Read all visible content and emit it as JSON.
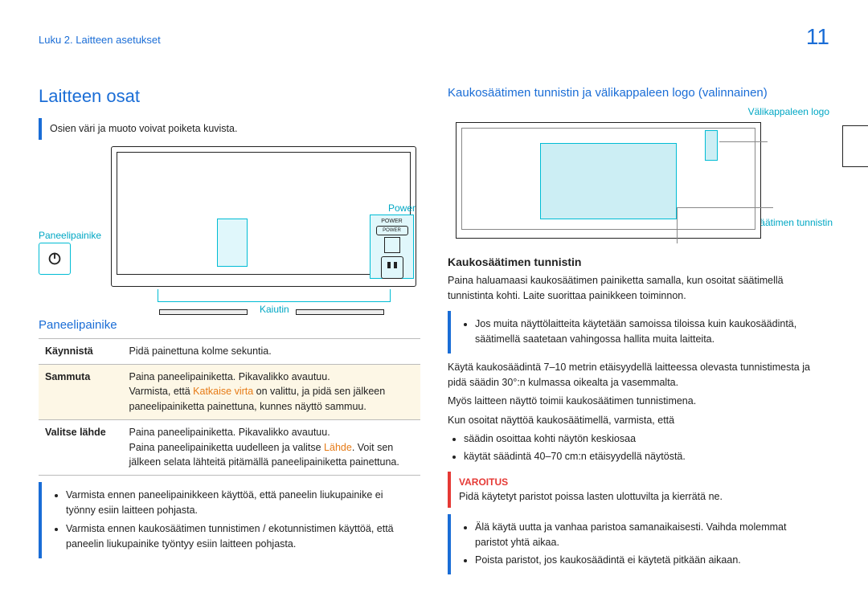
{
  "chapter": "Luku 2. Laitteen asetukset",
  "page_number": "11",
  "left": {
    "title": "Laitteen osat",
    "note_variation": "Osien väri ja muoto voivat poiketa kuvista.",
    "labels": {
      "power": "Power",
      "panel_button": "Paneelipainike",
      "speaker": "Kaiutin"
    },
    "panel_heading": "Paneelipainike",
    "table": [
      {
        "key": "Käynnistä",
        "val": "Pidä painettuna kolme sekuntia.",
        "hl": false
      },
      {
        "key": "Sammuta",
        "val_pre": "Paina paneelipainiketta. Pikavalikko avautuu.\nVarmista, että ",
        "val_orange": "Katkaise virta",
        "val_post": " on valittu, ja pidä sen jälkeen paneelipainiketta painettuna, kunnes näyttö sammuu.",
        "hl": true
      },
      {
        "key": "Valitse lähde",
        "val_pre": "Paina paneelipainiketta. Pikavalikko avautuu.\nPaina paneelipainiketta uudelleen ja valitse ",
        "val_orange": "Lähde",
        "val_post": ". Voit sen jälkeen selata lähteitä pitämällä paneelipainiketta painettuna.",
        "hl": false
      }
    ],
    "bottom_notes": [
      "Varmista ennen paneelipainikkeen käyttöä, että paneelin liukupainike ei työnny esiin laitteen pohjasta.",
      "Varmista ennen kaukosäätimen tunnistimen / ekotunnistimen käyttöä, että paneelin liukupainike työntyy esiin laitteen pohjasta."
    ]
  },
  "right": {
    "heading": "Kaukosäätimen tunnistin ja välikappaleen logo (valinnainen)",
    "labels": {
      "spacer_logo": "Välikappaleen logo",
      "remote_sensor": "Kaukosäätimen tunnistin"
    },
    "sensor_heading": "Kaukosäätimen tunnistin",
    "p1": "Paina haluamaasi kaukosäätimen painiketta samalla, kun osoitat säätimellä tunnistinta kohti. Laite suorittaa painikkeen toiminnon.",
    "note_multi": "Jos muita näyttölaitteita käytetään samoissa tiloissa kuin kaukosäädintä, säätimellä saatetaan vahingossa hallita muita laitteita.",
    "p2": "Käytä kaukosäädintä 7–10 metrin etäisyydellä laitteessa olevasta tunnistimesta ja pidä säädin 30°:n kulmassa oikealta ja vasemmalta.",
    "p3": "Myös laitteen näyttö toimii kaukosäätimen tunnistimena.",
    "p4": "Kun osoitat näyttöä kaukosäätimellä, varmista, että",
    "p4_list": [
      "säädin osoittaa kohti näytön keskiosaa",
      "käytät säädintä 40–70 cm:n etäisyydellä näytöstä."
    ],
    "warning_label": "VAROITUS",
    "warning_text": "Pidä käytetyt paristot poissa lasten ulottuvilta ja kierrätä ne.",
    "battery_notes": [
      "Älä käytä uutta ja vanhaa paristoa samanaikaisesti. Vaihda molemmat paristot yhtä aikaa.",
      "Poista paristot, jos kaukosäädintä ei käytetä pitkään aikaan."
    ]
  }
}
